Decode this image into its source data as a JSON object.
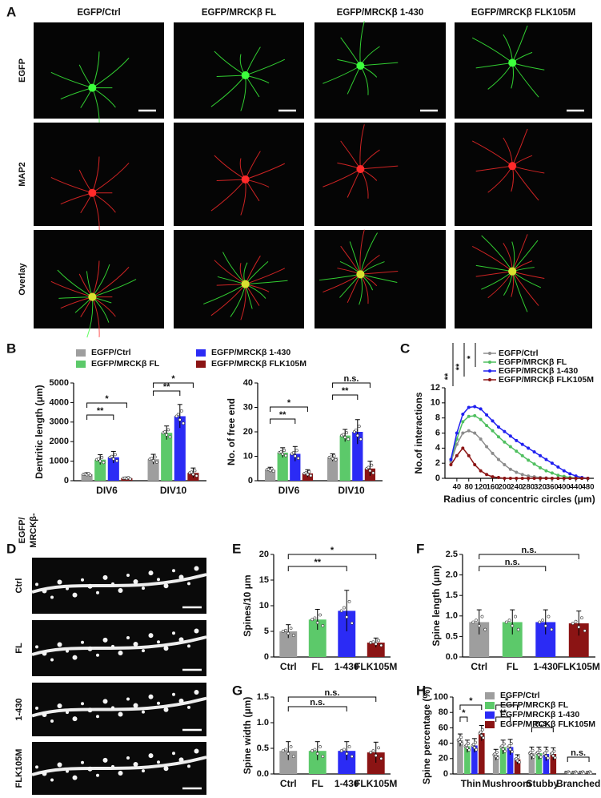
{
  "panel_labels": [
    "A",
    "B",
    "C",
    "D",
    "E",
    "F",
    "G",
    "H"
  ],
  "images": {
    "columns": [
      "EGFP/Ctrl",
      "EGFP/MRCKβ FL",
      "EGFP/MRCKβ 1-430",
      "EGFP/MRCKβ FLK105M"
    ],
    "rows": [
      "EGFP",
      "MAP2",
      "Overlay"
    ]
  },
  "dendrites": {
    "header": [
      "EGFP/",
      "MRCKβ-"
    ],
    "rows": [
      "Ctrl",
      "FL",
      "1-430",
      "FLK105M"
    ]
  },
  "chart_data": [
    {
      "type": "bar",
      "ylabel": "Dentritic length (μm)",
      "categories": [
        "DIV6",
        "DIV10"
      ],
      "series": [
        {
          "name": "EGFP/Ctrl",
          "color": "#9e9e9e",
          "values": [
            330,
            1100
          ],
          "errors": [
            80,
            250
          ]
        },
        {
          "name": "EGFP/MRCKβ FL",
          "color": "#5cc96a",
          "values": [
            1080,
            2450
          ],
          "errors": [
            250,
            350
          ]
        },
        {
          "name": "EGFP/MRCKβ 1-430",
          "color": "#2b2bf5",
          "values": [
            1200,
            3300
          ],
          "errors": [
            300,
            600
          ]
        },
        {
          "name": "EGFP/MRCKβ FLK105M",
          "color": "#8b1414",
          "values": [
            130,
            400
          ],
          "errors": [
            60,
            250
          ]
        }
      ],
      "ylim": [
        0,
        5000
      ],
      "yticks": [
        0,
        1000,
        2000,
        3000,
        4000,
        5000
      ],
      "annotations": [
        "**",
        "*",
        "**",
        "*"
      ]
    },
    {
      "type": "bar",
      "ylabel": "No. of free end",
      "categories": [
        "DIV6",
        "DIV10"
      ],
      "series": [
        {
          "color": "#9e9e9e",
          "values": [
            4.5,
            9.5
          ],
          "errors": [
            1,
            1.5
          ]
        },
        {
          "color": "#5cc96a",
          "values": [
            11.5,
            18.5
          ],
          "errors": [
            2,
            2.5
          ]
        },
        {
          "color": "#2b2bf5",
          "values": [
            11,
            20
          ],
          "errors": [
            3,
            5
          ]
        },
        {
          "color": "#8b1414",
          "values": [
            3,
            5
          ],
          "errors": [
            1.5,
            3
          ]
        }
      ],
      "ylim": [
        0,
        40
      ],
      "yticks": [
        0,
        10,
        20,
        30,
        40
      ],
      "annotations": [
        "**",
        "*",
        "**",
        "n.s."
      ]
    },
    {
      "type": "line",
      "xlabel": "Radius of concentric circles (μm)",
      "ylabel": "No.of interactions",
      "x": [
        20,
        40,
        60,
        80,
        100,
        120,
        140,
        160,
        180,
        200,
        220,
        240,
        260,
        280,
        300,
        320,
        340,
        360,
        380,
        400,
        420,
        440,
        460,
        480
      ],
      "series": [
        {
          "name": "EGFP/Ctrl",
          "color": "#8c8c8c",
          "values": [
            2.2,
            4.5,
            6.0,
            6.3,
            6.0,
            5.2,
            4.2,
            3.3,
            2.5,
            1.8,
            1.2,
            0.8,
            0.5,
            0.3,
            0.2,
            0.1,
            0.05,
            0,
            0,
            0,
            0,
            0,
            0,
            0
          ]
        },
        {
          "name": "EGFP/MRCKβ FL",
          "color": "#4fbf5f",
          "values": [
            2.5,
            5.2,
            7.5,
            8.2,
            8.3,
            7.8,
            7.0,
            6.3,
            5.5,
            4.8,
            4.2,
            3.6,
            3.0,
            2.4,
            1.9,
            1.4,
            1.0,
            0.7,
            0.4,
            0.25,
            0.1,
            0.05,
            0,
            0
          ]
        },
        {
          "name": "EGFP/MRCKβ 1-430",
          "color": "#1f1ff0",
          "values": [
            2.5,
            6.0,
            8.5,
            9.4,
            9.5,
            9.2,
            8.4,
            7.6,
            6.8,
            6.2,
            5.6,
            5.0,
            4.5,
            4.0,
            3.5,
            3.0,
            2.5,
            2.0,
            1.5,
            1.0,
            0.6,
            0.3,
            0.1,
            0
          ]
        },
        {
          "name": "EGFP/MRCKβ FLK105M",
          "color": "#8b1414",
          "values": [
            1.8,
            3.0,
            4.0,
            3.0,
            1.8,
            1.0,
            0.5,
            0.2,
            0.1,
            0,
            0,
            0,
            0,
            0,
            0,
            0,
            0,
            0,
            0,
            0,
            0,
            0,
            0,
            0
          ]
        }
      ],
      "xlim": [
        0,
        500
      ],
      "xticks": [
        40,
        80,
        120,
        160,
        200,
        240,
        280,
        320,
        360,
        400,
        440,
        480
      ],
      "ylim": [
        0,
        12
      ],
      "yticks": [
        0,
        2,
        4,
        6,
        8,
        10,
        12
      ],
      "annotations": [
        "**",
        "**",
        "*"
      ]
    },
    {
      "type": "bar",
      "ylabel": "Spines/10 μm",
      "categories": [
        "Ctrl",
        "FL",
        "1-430",
        "FLK105M"
      ],
      "values": [
        5,
        7.3,
        9,
        2.8
      ],
      "errors": [
        1.3,
        2,
        4,
        0.9
      ],
      "colors": [
        "#9e9e9e",
        "#5cc96a",
        "#2b2bf5",
        "#8b1414"
      ],
      "ylim": [
        0,
        20
      ],
      "yticks": [
        0,
        5,
        10,
        15,
        20
      ],
      "annotations": [
        "**",
        "*"
      ]
    },
    {
      "type": "bar",
      "ylabel": "Spine length (μm)",
      "categories": [
        "Ctrl",
        "FL",
        "1-430",
        "FLK105M"
      ],
      "values": [
        0.85,
        0.85,
        0.85,
        0.82
      ],
      "errors": [
        0.3,
        0.3,
        0.3,
        0.3
      ],
      "colors": [
        "#9e9e9e",
        "#5cc96a",
        "#2b2bf5",
        "#8b1414"
      ],
      "ylim": [
        0,
        2.5
      ],
      "yticks": [
        {
          "value": 0,
          "label": "0.0"
        },
        0.5,
        {
          "value": 1,
          "label": "1.0"
        },
        1.5,
        {
          "value": 2,
          "label": "2.0"
        },
        2.5
      ],
      "annotations": [
        "n.s.",
        "n.s."
      ]
    },
    {
      "type": "bar",
      "ylabel": "Spine  width (μm)",
      "categories": [
        "Ctrl",
        "FL",
        "1-430",
        "FLK105M"
      ],
      "values": [
        0.45,
        0.45,
        0.45,
        0.42
      ],
      "errors": [
        0.18,
        0.18,
        0.18,
        0.2
      ],
      "colors": [
        "#9e9e9e",
        "#5cc96a",
        "#2b2bf5",
        "#8b1414"
      ],
      "ylim": [
        0,
        1.5
      ],
      "yticks": [
        {
          "value": 0,
          "label": "0.0"
        },
        0.5,
        {
          "value": 1,
          "label": "1.0"
        },
        1.5
      ],
      "annotations": [
        "n.s.",
        "n.s."
      ]
    },
    {
      "type": "bar",
      "ylabel": "Spine percentage (%)",
      "categories": [
        "Thin",
        "Mushroom",
        "Stubby",
        "Branched"
      ],
      "series": [
        {
          "name": "EGFP/Ctrl",
          "color": "#9e9e9e",
          "values": [
            44,
            25,
            27,
            2
          ],
          "errors": [
            8,
            7,
            8,
            1.5
          ]
        },
        {
          "name": "EGFP/MRCKβ FL",
          "color": "#5cc96a",
          "values": [
            36,
            35,
            27,
            2
          ],
          "errors": [
            8,
            9,
            8,
            1.5
          ]
        },
        {
          "name": "EGFP/MRCKβ 1-430",
          "color": "#2b2bf5",
          "values": [
            37,
            35,
            26,
            2
          ],
          "errors": [
            9,
            10,
            9,
            1.5
          ]
        },
        {
          "name": "EGFP/MRCKβ FLK105M",
          "color": "#8b1414",
          "values": [
            53,
            19,
            26,
            2
          ],
          "errors": [
            10,
            6,
            8,
            1.5
          ]
        }
      ],
      "ylim": [
        0,
        100
      ],
      "yticks": [
        0,
        20,
        40,
        60,
        80,
        100
      ],
      "annotations": [
        "*",
        "*",
        "**",
        "*",
        "n.s.",
        "n.s."
      ]
    }
  ]
}
